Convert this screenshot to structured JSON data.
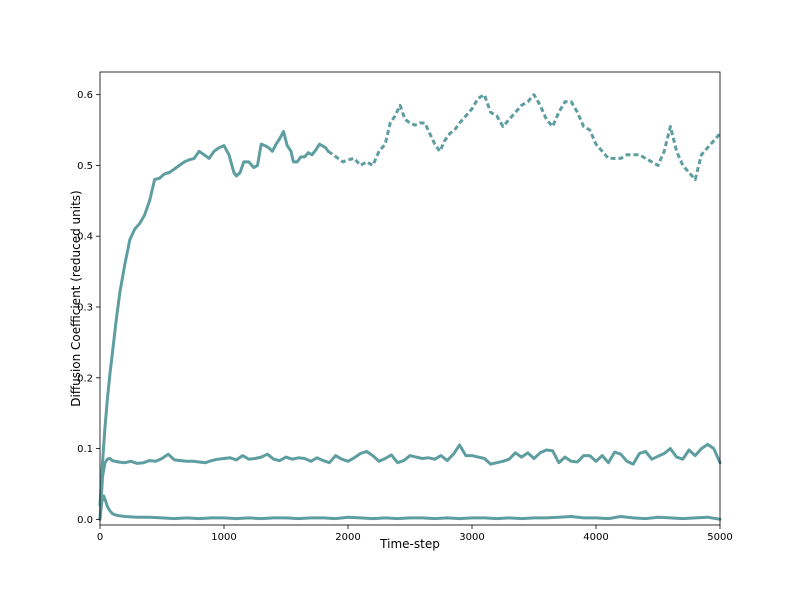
{
  "chart_data": {
    "type": "line",
    "title": "",
    "xlabel": "Time-step",
    "ylabel": "Diffusion Coefficient (reduced units)",
    "xlim": [
      0,
      5000
    ],
    "ylim": [
      -0.008,
      0.632
    ],
    "grid": false,
    "legend": "none",
    "color": "#5f9ea0",
    "x_ticks": [
      {
        "value": 0,
        "label": "0"
      },
      {
        "value": 1000,
        "label": "1000"
      },
      {
        "value": 2000,
        "label": "2000"
      },
      {
        "value": 3000,
        "label": "3000"
      },
      {
        "value": 4000,
        "label": "4000"
      },
      {
        "value": 5000,
        "label": "5000"
      }
    ],
    "y_ticks": [
      {
        "value": 0.0,
        "label": "0.0"
      },
      {
        "value": 0.1,
        "label": "0.1"
      },
      {
        "value": 0.2,
        "label": "0.2"
      },
      {
        "value": 0.3,
        "label": "0.3"
      },
      {
        "value": 0.4,
        "label": "0.4"
      },
      {
        "value": 0.5,
        "label": "0.5"
      },
      {
        "value": 0.6,
        "label": "0.6"
      }
    ],
    "series": [
      {
        "style": "solid",
        "x": [
          0,
          20,
          40,
          60,
          80,
          100,
          130,
          160,
          200,
          240,
          280,
          320,
          360,
          400,
          440,
          480,
          520,
          560,
          600,
          640,
          680,
          720,
          760,
          800,
          840,
          880,
          920,
          960,
          1000,
          1040,
          1080,
          1100,
          1130,
          1160,
          1200,
          1240,
          1270,
          1300,
          1330,
          1360,
          1390,
          1420,
          1450,
          1480,
          1510,
          1540,
          1560,
          1590,
          1620,
          1650,
          1680,
          1710,
          1740,
          1770,
          1800,
          1820,
          1840
        ],
        "y": [
          0.02,
          0.08,
          0.13,
          0.17,
          0.205,
          0.235,
          0.28,
          0.32,
          0.36,
          0.395,
          0.41,
          0.418,
          0.43,
          0.45,
          0.48,
          0.482,
          0.488,
          0.49,
          0.495,
          0.5,
          0.505,
          0.508,
          0.51,
          0.52,
          0.515,
          0.51,
          0.52,
          0.525,
          0.528,
          0.515,
          0.49,
          0.485,
          0.49,
          0.505,
          0.505,
          0.497,
          0.5,
          0.53,
          0.528,
          0.525,
          0.52,
          0.53,
          0.538,
          0.548,
          0.528,
          0.52,
          0.505,
          0.505,
          0.512,
          0.512,
          0.518,
          0.515,
          0.522,
          0.53,
          0.527,
          0.525,
          0.52
        ]
      },
      {
        "style": "dashed",
        "x": [
          1840,
          1880,
          1920,
          1960,
          2000,
          2050,
          2100,
          2150,
          2200,
          2250,
          2300,
          2340,
          2380,
          2420,
          2460,
          2500,
          2540,
          2580,
          2620,
          2660,
          2700,
          2740,
          2780,
          2820,
          2860,
          2900,
          2950,
          3000,
          3050,
          3100,
          3150,
          3200,
          3250,
          3300,
          3350,
          3400,
          3450,
          3500,
          3550,
          3600,
          3650,
          3700,
          3750,
          3800,
          3850,
          3900,
          3950,
          4000,
          4050,
          4100,
          4150,
          4200,
          4250,
          4300,
          4350,
          4400,
          4450,
          4500,
          4550,
          4600,
          4650,
          4700,
          4750,
          4800,
          4850,
          4900,
          4950,
          5000
        ],
        "y": [
          0.52,
          0.515,
          0.51,
          0.505,
          0.508,
          0.51,
          0.5,
          0.505,
          0.5,
          0.52,
          0.53,
          0.56,
          0.57,
          0.585,
          0.565,
          0.56,
          0.557,
          0.56,
          0.56,
          0.545,
          0.53,
          0.52,
          0.535,
          0.545,
          0.55,
          0.56,
          0.57,
          0.58,
          0.595,
          0.6,
          0.575,
          0.57,
          0.555,
          0.565,
          0.575,
          0.585,
          0.59,
          0.6,
          0.585,
          0.565,
          0.555,
          0.575,
          0.59,
          0.59,
          0.575,
          0.555,
          0.55,
          0.53,
          0.52,
          0.51,
          0.51,
          0.51,
          0.515,
          0.515,
          0.515,
          0.51,
          0.505,
          0.5,
          0.52,
          0.555,
          0.52,
          0.5,
          0.49,
          0.48,
          0.515,
          0.525,
          0.535,
          0.545
        ]
      },
      {
        "style": "solid",
        "x": [
          0,
          20,
          40,
          60,
          80,
          100,
          150,
          200,
          250,
          300,
          350,
          400,
          450,
          500,
          550,
          600,
          650,
          700,
          750,
          800,
          850,
          900,
          950,
          1000,
          1050,
          1100,
          1150,
          1200,
          1250,
          1300,
          1350,
          1400,
          1450,
          1500,
          1550,
          1600,
          1650,
          1700,
          1750,
          1800,
          1850,
          1900,
          1950,
          2000,
          2050,
          2100,
          2150,
          2200,
          2250,
          2300,
          2350,
          2400,
          2450,
          2500,
          2550,
          2600,
          2650,
          2700,
          2750,
          2800,
          2850,
          2900,
          2950,
          3000,
          3050,
          3100,
          3150,
          3200,
          3250,
          3300,
          3350,
          3400,
          3450,
          3500,
          3550,
          3600,
          3650,
          3700,
          3750,
          3800,
          3850,
          3900,
          3950,
          4000,
          4050,
          4100,
          4150,
          4200,
          4250,
          4300,
          4350,
          4400,
          4450,
          4500,
          4550,
          4600,
          4650,
          4700,
          4750,
          4800,
          4850,
          4900,
          4950,
          5000
        ],
        "y": [
          0.0,
          0.06,
          0.08,
          0.085,
          0.086,
          0.083,
          0.081,
          0.08,
          0.082,
          0.079,
          0.08,
          0.083,
          0.082,
          0.086,
          0.092,
          0.084,
          0.083,
          0.082,
          0.082,
          0.081,
          0.08,
          0.083,
          0.085,
          0.086,
          0.087,
          0.084,
          0.09,
          0.085,
          0.086,
          0.088,
          0.092,
          0.085,
          0.083,
          0.088,
          0.085,
          0.087,
          0.086,
          0.082,
          0.087,
          0.083,
          0.08,
          0.09,
          0.085,
          0.082,
          0.087,
          0.093,
          0.096,
          0.09,
          0.082,
          0.086,
          0.091,
          0.08,
          0.083,
          0.09,
          0.088,
          0.086,
          0.087,
          0.085,
          0.09,
          0.083,
          0.092,
          0.105,
          0.09,
          0.09,
          0.088,
          0.086,
          0.078,
          0.08,
          0.082,
          0.085,
          0.094,
          0.088,
          0.094,
          0.086,
          0.094,
          0.098,
          0.097,
          0.08,
          0.088,
          0.082,
          0.081,
          0.09,
          0.09,
          0.082,
          0.09,
          0.08,
          0.095,
          0.092,
          0.082,
          0.078,
          0.093,
          0.096,
          0.085,
          0.089,
          0.093,
          0.1,
          0.088,
          0.085,
          0.098,
          0.09,
          0.1,
          0.106,
          0.1,
          0.08
        ]
      },
      {
        "style": "solid",
        "x": [
          0,
          15,
          30,
          45,
          60,
          80,
          100,
          130,
          160,
          200,
          300,
          400,
          500,
          600,
          700,
          800,
          900,
          1000,
          1100,
          1200,
          1300,
          1400,
          1500,
          1600,
          1700,
          1800,
          1900,
          2000,
          2100,
          2200,
          2300,
          2400,
          2500,
          2600,
          2700,
          2800,
          2900,
          3000,
          3100,
          3200,
          3300,
          3400,
          3500,
          3600,
          3700,
          3800,
          3900,
          4000,
          4100,
          4200,
          4300,
          4400,
          4500,
          4600,
          4700,
          4800,
          4900,
          5000
        ],
        "y": [
          0.002,
          0.025,
          0.033,
          0.026,
          0.018,
          0.012,
          0.008,
          0.006,
          0.005,
          0.004,
          0.003,
          0.003,
          0.002,
          0.001,
          0.002,
          0.001,
          0.002,
          0.002,
          0.001,
          0.002,
          0.001,
          0.002,
          0.002,
          0.001,
          0.002,
          0.002,
          0.001,
          0.003,
          0.002,
          0.001,
          0.002,
          0.001,
          0.002,
          0.002,
          0.001,
          0.002,
          0.001,
          0.002,
          0.002,
          0.001,
          0.002,
          0.001,
          0.002,
          0.002,
          0.003,
          0.004,
          0.002,
          0.002,
          0.001,
          0.004,
          0.002,
          0.001,
          0.003,
          0.002,
          0.001,
          0.002,
          0.003,
          0.0
        ]
      }
    ]
  }
}
